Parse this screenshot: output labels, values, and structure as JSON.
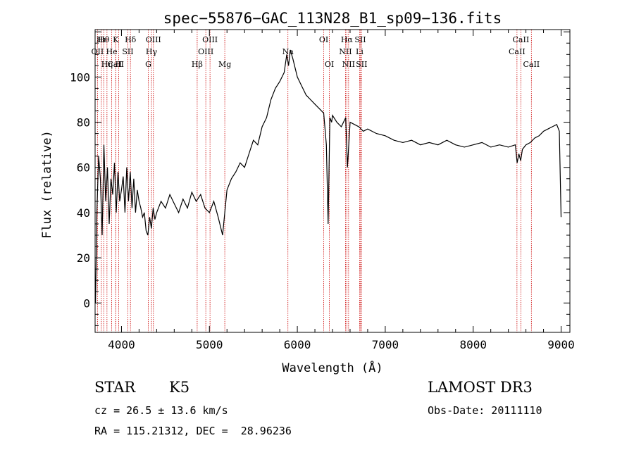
{
  "chart_data": {
    "type": "line",
    "title": "spec−55876−GAC_113N28_B1_sp09−136.fits",
    "xlabel": "Wavelength (Å)",
    "ylabel": "Flux (relative)",
    "xlim": [
      3700,
      9100
    ],
    "ylim": [
      -13,
      121
    ],
    "xticks": [
      4000,
      5000,
      6000,
      7000,
      8000,
      9000
    ],
    "yticks": [
      0,
      20,
      40,
      60,
      80,
      100
    ],
    "series": [
      {
        "name": "flux",
        "x": [
          3705,
          3720,
          3740,
          3760,
          3780,
          3800,
          3820,
          3840,
          3860,
          3880,
          3900,
          3920,
          3940,
          3960,
          3980,
          4000,
          4020,
          4040,
          4060,
          4080,
          4100,
          4120,
          4140,
          4160,
          4180,
          4200,
          4220,
          4240,
          4260,
          4280,
          4300,
          4320,
          4340,
          4360,
          4380,
          4400,
          4450,
          4500,
          4550,
          4600,
          4650,
          4700,
          4750,
          4800,
          4850,
          4900,
          4950,
          5000,
          5050,
          5100,
          5150,
          5200,
          5250,
          5300,
          5350,
          5400,
          5450,
          5500,
          5550,
          5600,
          5650,
          5700,
          5750,
          5800,
          5850,
          5880,
          5900,
          5920,
          5950,
          6000,
          6050,
          6100,
          6150,
          6200,
          6250,
          6300,
          6330,
          6350,
          6370,
          6390,
          6400,
          6450,
          6500,
          6550,
          6570,
          6600,
          6650,
          6700,
          6750,
          6800,
          6900,
          7000,
          7100,
          7200,
          7300,
          7400,
          7500,
          7600,
          7700,
          7800,
          7900,
          8000,
          8100,
          8200,
          8300,
          8400,
          8480,
          8500,
          8520,
          8540,
          8560,
          8600,
          8650,
          8700,
          8750,
          8800,
          8850,
          8900,
          8950,
          8980,
          9000
        ],
        "y": [
          0,
          40,
          65,
          55,
          30,
          70,
          45,
          60,
          35,
          55,
          48,
          62,
          40,
          58,
          45,
          50,
          56,
          40,
          60,
          45,
          58,
          42,
          55,
          40,
          50,
          45,
          42,
          38,
          40,
          32,
          30,
          38,
          33,
          42,
          37,
          40,
          45,
          42,
          48,
          44,
          40,
          46,
          42,
          49,
          45,
          48,
          42,
          40,
          45,
          38,
          30,
          50,
          55,
          58,
          62,
          60,
          66,
          72,
          70,
          78,
          82,
          90,
          95,
          98,
          102,
          110,
          105,
          112,
          108,
          100,
          96,
          92,
          90,
          88,
          86,
          84,
          70,
          35,
          82,
          80,
          83,
          80,
          78,
          82,
          60,
          80,
          79,
          78,
          76,
          77,
          75,
          74,
          72,
          71,
          72,
          70,
          71,
          70,
          72,
          70,
          69,
          70,
          71,
          69,
          70,
          69,
          70,
          62,
          66,
          63,
          68,
          70,
          71,
          73,
          74,
          76,
          77,
          78,
          79,
          76,
          38
        ]
      }
    ],
    "lines": [
      {
        "name": "Hθ",
        "x": 3798,
        "row": 0
      },
      {
        "name": "OII",
        "x": 3727,
        "row": 1
      },
      {
        "name": "CaII",
        "x": 3934,
        "row": 2
      },
      {
        "name": "Hι",
        "x": 3771,
        "row": 0
      },
      {
        "name": "Hη",
        "x": 3835,
        "row": 2
      },
      {
        "name": "K",
        "x": 3934,
        "row": 0
      },
      {
        "name": "He",
        "x": 3889,
        "row": 1
      },
      {
        "name": "H",
        "x": 3969,
        "row": 2
      },
      {
        "name": "SII",
        "x": 4072,
        "row": 1
      },
      {
        "name": "Hδ",
        "x": 4102,
        "row": 0
      },
      {
        "name": "OIII",
        "x": 4363,
        "row": 0
      },
      {
        "name": "Hγ",
        "x": 4341,
        "row": 1
      },
      {
        "name": "G",
        "x": 4305,
        "row": 2
      },
      {
        "name": "Hβ",
        "x": 4861,
        "row": 2
      },
      {
        "name": "OIII",
        "x": 4959,
        "row": 1
      },
      {
        "name": "OIII",
        "x": 5007,
        "row": 0
      },
      {
        "name": "Mg",
        "x": 5175,
        "row": 2
      },
      {
        "name": "Na",
        "x": 5893,
        "row": 1
      },
      {
        "name": "OI",
        "x": 6300,
        "row": 0
      },
      {
        "name": "OI",
        "x": 6364,
        "row": 2
      },
      {
        "name": "Hα",
        "x": 6563,
        "row": 0
      },
      {
        "name": "NII",
        "x": 6548,
        "row": 1
      },
      {
        "name": "NII",
        "x": 6583,
        "row": 2
      },
      {
        "name": "SII",
        "x": 6716,
        "row": 0
      },
      {
        "name": "Li",
        "x": 6708,
        "row": 1
      },
      {
        "name": "SII",
        "x": 6731,
        "row": 2
      },
      {
        "name": "CaII",
        "x": 8498,
        "row": 1
      },
      {
        "name": "CaII",
        "x": 8542,
        "row": 0
      },
      {
        "name": "CaII",
        "x": 8662,
        "row": 2
      }
    ]
  },
  "footer": {
    "class": "STAR",
    "subclass": "K5",
    "survey": "LAMOST DR3",
    "cz": "cz = 26.5 ± 13.6 km/s",
    "obs_date": "Obs-Date: 20111110",
    "radec": "RA = 115.21312, DEC =  28.96236"
  },
  "colors": {
    "axis": "#000000",
    "spectrum": "#000000",
    "line_marker": "#cc0000"
  }
}
